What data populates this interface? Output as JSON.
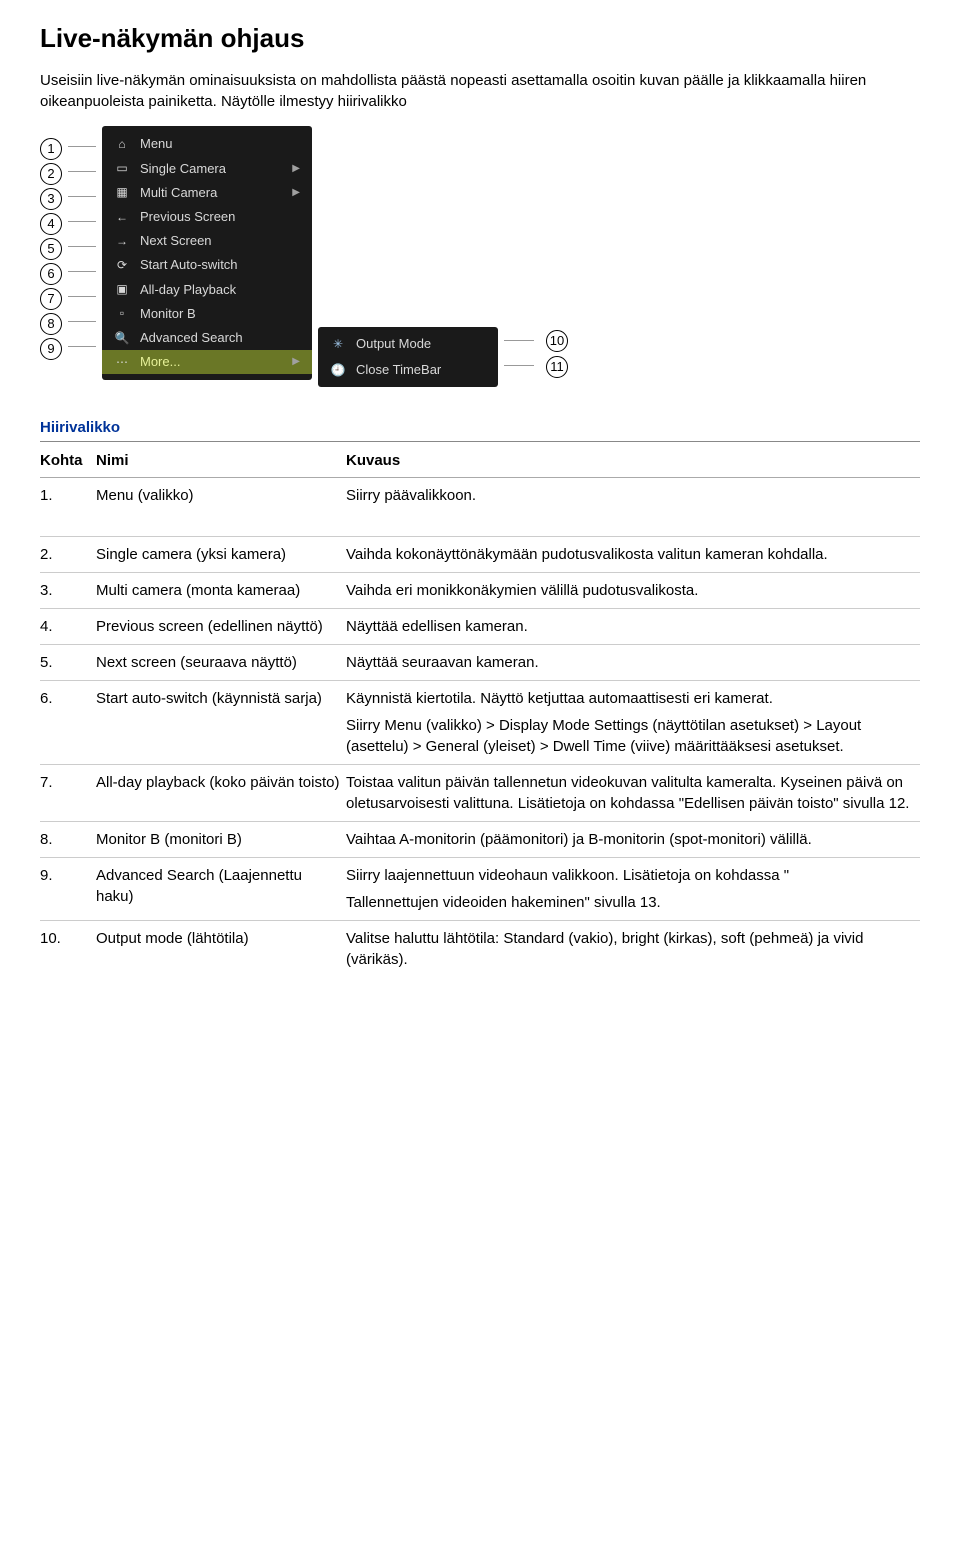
{
  "title": "Live-näkymän ohjaus",
  "intro": "Useisiin live-näkymän ominaisuuksista on mahdollista päästä nopeasti asettamalla osoitin kuvan päälle ja klikkaamalla hiiren oikeanpuoleista painiketta. Näytölle ilmestyy hiirivalikko",
  "circled_left": [
    "1",
    "2",
    "3",
    "4",
    "5",
    "6",
    "7",
    "8",
    "9"
  ],
  "circled_right": [
    "10",
    "11"
  ],
  "menu": {
    "items": [
      {
        "icon": "home-icon",
        "glyph": "⌂",
        "label": "Menu",
        "chev": false
      },
      {
        "icon": "single-camera-icon",
        "glyph": "▭",
        "label": "Single Camera",
        "chev": true
      },
      {
        "icon": "multi-camera-icon",
        "glyph": "▦",
        "label": "Multi Camera",
        "chev": true
      },
      {
        "icon": "arrow-left-icon",
        "glyph": "←",
        "label": "Previous Screen",
        "chev": false
      },
      {
        "icon": "arrow-right-icon",
        "glyph": "→",
        "label": "Next Screen",
        "chev": false
      },
      {
        "icon": "play-icon",
        "glyph": "⟳",
        "label": "Start Auto-switch",
        "chev": false
      },
      {
        "icon": "playback-icon",
        "glyph": "▣",
        "label": "All-day Playback",
        "chev": false
      },
      {
        "icon": "monitor-icon",
        "glyph": "▫",
        "label": "Monitor B",
        "chev": false
      },
      {
        "icon": "search-icon",
        "glyph": "🔍",
        "label": "Advanced Search",
        "chev": false
      },
      {
        "icon": "more-icon",
        "glyph": "⋯",
        "label": "More...",
        "chev": true,
        "highlight": true
      }
    ],
    "sub": [
      {
        "icon": "gear-icon",
        "glyph": "✳",
        "label": "Output Mode"
      },
      {
        "icon": "clock-icon",
        "glyph": "🕘",
        "label": "Close TimeBar"
      }
    ]
  },
  "table": {
    "title": "Hiirivalikko",
    "headers": {
      "num": "Kohta",
      "name": "Nimi",
      "desc": "Kuvaus"
    },
    "rows": [
      {
        "num": "1.",
        "name": "Menu (valikko)",
        "desc": [
          "Siirry päävalikkoon."
        ]
      },
      {
        "num": "2.",
        "name": "Single camera (yksi kamera)",
        "desc": [
          "Vaihda kokonäyttönäkymään pudotusvalikosta valitun kameran kohdalla."
        ]
      },
      {
        "num": "3.",
        "name": "Multi camera (monta kameraa)",
        "desc": [
          "Vaihda eri monikkonäkymien välillä pudotusvalikosta."
        ]
      },
      {
        "num": "4.",
        "name": "Previous screen (edellinen näyttö)",
        "desc": [
          "Näyttää edellisen kameran."
        ]
      },
      {
        "num": "5.",
        "name": "Next screen (seuraava näyttö)",
        "desc": [
          "Näyttää seuraavan kameran."
        ]
      },
      {
        "num": "6.",
        "name": "Start auto-switch (käynnistä sarja)",
        "desc": [
          "Käynnistä kiertotila. Näyttö ketjuttaa automaattisesti eri kamerat.",
          "Siirry Menu (valikko) > Display Mode Settings (näyttötilan asetukset) > Layout (asettelu) > General (yleiset) > Dwell Time (viive) määrittääksesi asetukset."
        ]
      },
      {
        "num": "7.",
        "name": "All-day playback (koko päivän toisto)",
        "desc": [
          "Toistaa valitun päivän tallennetun videokuvan valitulta kameralta. Kyseinen päivä on oletusarvoisesti valittuna. Lisätietoja on kohdassa \"Edellisen päivän toisto\" sivulla 12."
        ]
      },
      {
        "num": "8.",
        "name": "Monitor B (monitori B)",
        "desc": [
          "Vaihtaa A-monitorin (päämonitori) ja B-monitorin (spot-monitori) välillä."
        ]
      },
      {
        "num": "9.",
        "name": "Advanced Search (Laajennettu haku)",
        "desc": [
          "Siirry laajennettuun videohaun valikkoon. Lisätietoja on kohdassa \"",
          "Tallennettujen videoiden hakeminen\" sivulla 13."
        ]
      },
      {
        "num": "10.",
        "name": "Output mode (lähtötila)",
        "desc": [
          "Valitse haluttu lähtötila: Standard (vakio), bright (kirkas), soft (pehmeä) ja vivid (värikäs)."
        ]
      }
    ]
  }
}
